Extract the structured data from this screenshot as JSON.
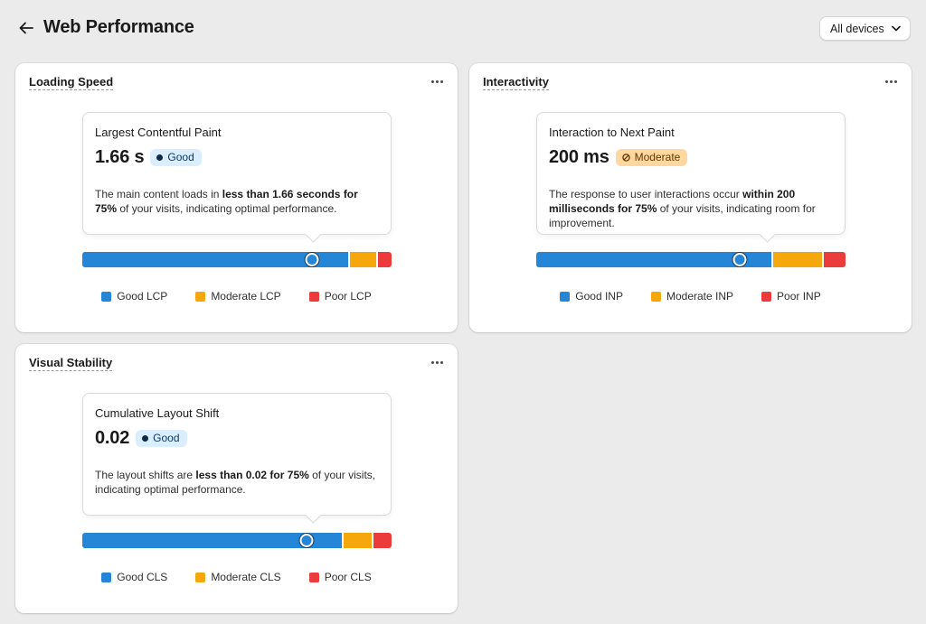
{
  "header": {
    "title": "Web Performance",
    "device_filter": "All devices"
  },
  "colors": {
    "good": "#2585d6",
    "moderate": "#f5a70c",
    "poor": "#eb3b3b"
  },
  "cards": [
    {
      "title": "Loading Speed",
      "metric_name": "Largest Contentful Paint",
      "value": "1.66 s",
      "status": "Good",
      "description": {
        "pre": "The main content loads in ",
        "bold": "less than 1.66 seconds for 75%",
        "post": " of your visits, indicating optimal performance."
      },
      "distribution": {
        "good": 0.87,
        "moderate": 0.085,
        "poor": 0.045
      },
      "marker_percentile": 0.75,
      "legend": [
        "Good LCP",
        "Moderate LCP",
        "Poor LCP"
      ]
    },
    {
      "title": "Interactivity",
      "metric_name": "Interaction to Next Paint",
      "value": "200 ms",
      "status": "Moderate",
      "description": {
        "pre": "The response to user interactions occur ",
        "bold": "within 200 milliseconds for 75%",
        "post": " of your visits, indicating room for improvement."
      },
      "distribution": {
        "good": 0.77,
        "moderate": 0.16,
        "poor": 0.07
      },
      "marker_percentile": 0.75,
      "legend": [
        "Good INP",
        "Moderate INP",
        "Poor INP"
      ]
    },
    {
      "title": "Visual Stability",
      "metric_name": "Cumulative Layout Shift",
      "value": "0.02",
      "status": "Good",
      "description": {
        "pre": "The layout shifts are ",
        "bold": "less than 0.02 for 75%",
        "post": " of your visits, indicating optimal performance."
      },
      "distribution": {
        "good": 0.85,
        "moderate": 0.09,
        "poor": 0.06
      },
      "marker_percentile": 0.75,
      "legend": [
        "Good CLS",
        "Moderate CLS",
        "Poor CLS"
      ]
    }
  ]
}
